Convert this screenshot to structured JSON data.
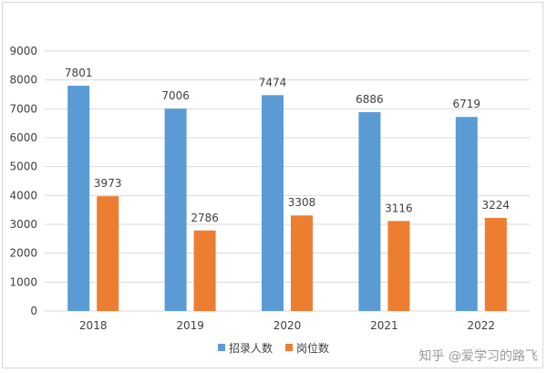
{
  "chart_data": {
    "type": "bar",
    "categories": [
      "2018",
      "2019",
      "2020",
      "2021",
      "2022"
    ],
    "series": [
      {
        "name": "招录人数",
        "values": [
          7801,
          7006,
          7474,
          6886,
          6719
        ],
        "color": "#5b9bd5"
      },
      {
        "name": "岗位数",
        "values": [
          3973,
          2786,
          3308,
          3116,
          3224
        ],
        "color": "#ed7d31"
      }
    ],
    "ylim": [
      0,
      9000
    ],
    "yticks": [
      0,
      1000,
      2000,
      3000,
      4000,
      5000,
      6000,
      7000,
      8000,
      9000
    ],
    "grid": true,
    "legend_position": "bottom-center",
    "title": "",
    "xlabel": "",
    "ylabel": ""
  },
  "watermark": "知乎 @爱学习的路飞"
}
